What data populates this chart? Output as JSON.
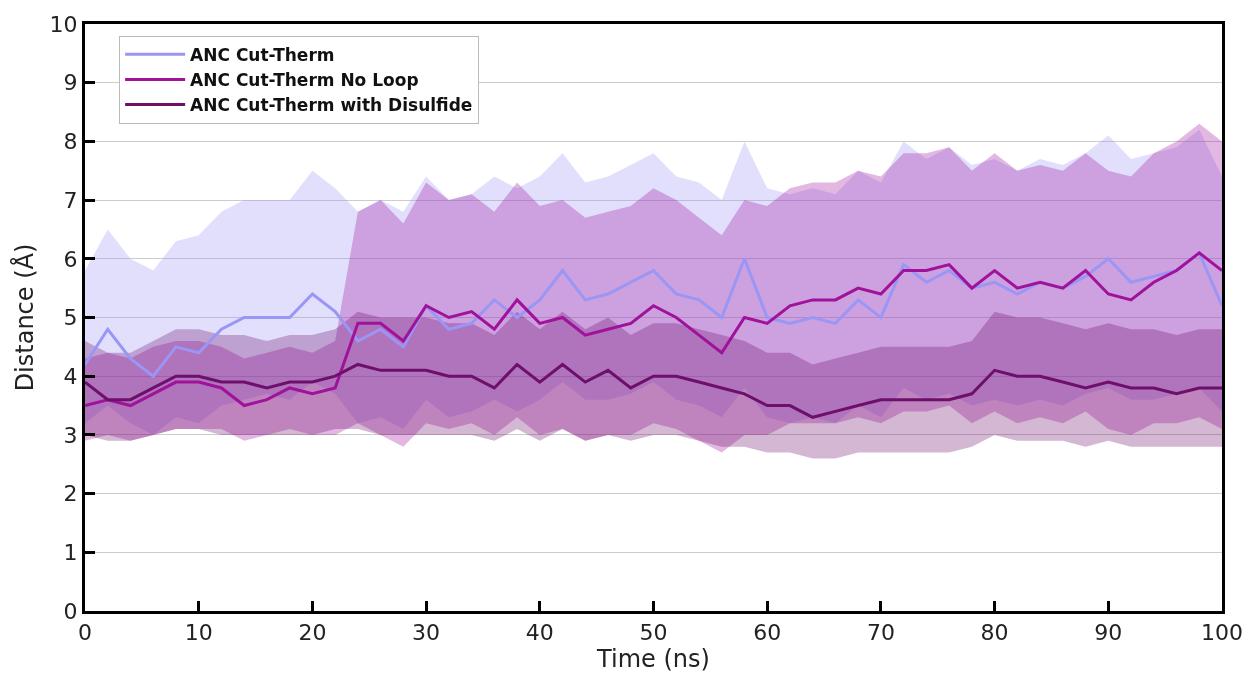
{
  "chart_data": {
    "type": "line",
    "xlabel": "Time (ns)",
    "ylabel": "Distance (Å)",
    "x": [
      0,
      2,
      4,
      6,
      8,
      10,
      12,
      14,
      16,
      18,
      20,
      22,
      24,
      26,
      28,
      30,
      32,
      34,
      36,
      38,
      40,
      42,
      44,
      46,
      48,
      50,
      52,
      54,
      56,
      58,
      60,
      62,
      64,
      66,
      68,
      70,
      72,
      74,
      76,
      78,
      80,
      82,
      84,
      86,
      88,
      90,
      92,
      94,
      96,
      98,
      100
    ],
    "xlim": [
      0,
      100
    ],
    "xticks": [
      0,
      10,
      20,
      30,
      40,
      50,
      60,
      70,
      80,
      90,
      100
    ],
    "ylim": [
      0,
      10
    ],
    "yticks": [
      0,
      1,
      2,
      3,
      4,
      5,
      6,
      7,
      8,
      9,
      10
    ],
    "grid": "y",
    "legend": "top left",
    "series": [
      {
        "name": "ANC Cut-Therm",
        "color": "#9a96f5",
        "values": [
          4.2,
          4.8,
          4.3,
          4.0,
          4.5,
          4.4,
          4.8,
          5.0,
          5.0,
          5.0,
          5.4,
          5.1,
          4.6,
          4.8,
          4.5,
          5.2,
          4.8,
          4.9,
          5.3,
          5.0,
          5.3,
          5.8,
          5.3,
          5.4,
          5.6,
          5.8,
          5.4,
          5.3,
          5.0,
          6.0,
          5.0,
          4.9,
          5.0,
          4.9,
          5.3,
          5.0,
          5.9,
          5.6,
          5.8,
          5.5,
          5.6,
          5.4,
          5.6,
          5.5,
          5.7,
          6.0,
          5.6,
          5.7,
          5.8,
          6.1,
          5.2
        ],
        "lower": [
          3.2,
          3.5,
          3.2,
          3.0,
          3.3,
          3.2,
          3.5,
          3.6,
          3.7,
          3.6,
          3.9,
          3.7,
          3.2,
          3.3,
          3.1,
          3.6,
          3.3,
          3.4,
          3.6,
          3.4,
          3.6,
          3.9,
          3.6,
          3.6,
          3.7,
          3.9,
          3.6,
          3.5,
          3.3,
          3.8,
          3.3,
          3.2,
          3.3,
          3.2,
          3.5,
          3.3,
          3.8,
          3.6,
          3.7,
          3.5,
          3.6,
          3.5,
          3.6,
          3.5,
          3.7,
          3.8,
          3.6,
          3.6,
          3.7,
          3.8,
          3.4
        ],
        "upper": [
          5.8,
          6.5,
          6.0,
          5.8,
          6.3,
          6.4,
          6.8,
          7.0,
          7.0,
          7.0,
          7.5,
          7.2,
          6.8,
          7.0,
          6.8,
          7.4,
          7.0,
          7.1,
          7.4,
          7.2,
          7.4,
          7.8,
          7.3,
          7.4,
          7.6,
          7.8,
          7.4,
          7.3,
          7.0,
          8.0,
          7.2,
          7.1,
          7.2,
          7.1,
          7.5,
          7.3,
          8.0,
          7.7,
          7.9,
          7.6,
          7.7,
          7.5,
          7.7,
          7.6,
          7.8,
          8.1,
          7.7,
          7.8,
          7.9,
          8.2,
          7.4
        ]
      },
      {
        "name": "ANC Cut-Therm No Loop",
        "color": "#a0129a",
        "values": [
          3.5,
          3.6,
          3.5,
          3.7,
          3.9,
          3.9,
          3.8,
          3.5,
          3.6,
          3.8,
          3.7,
          3.8,
          4.9,
          4.9,
          4.6,
          5.2,
          5.0,
          5.1,
          4.8,
          5.3,
          4.9,
          5.0,
          4.7,
          4.8,
          4.9,
          5.2,
          5.0,
          4.7,
          4.4,
          5.0,
          4.9,
          5.2,
          5.3,
          5.3,
          5.5,
          5.4,
          5.8,
          5.8,
          5.9,
          5.5,
          5.8,
          5.5,
          5.6,
          5.5,
          5.8,
          5.4,
          5.3,
          5.6,
          5.8,
          6.1,
          5.8
        ],
        "lower": [
          2.9,
          3.0,
          2.9,
          3.0,
          3.1,
          3.1,
          3.1,
          2.9,
          3.0,
          3.1,
          3.0,
          3.0,
          3.2,
          3.0,
          2.8,
          3.2,
          3.1,
          3.2,
          3.0,
          3.3,
          3.0,
          3.1,
          2.9,
          3.0,
          3.0,
          3.2,
          3.1,
          2.9,
          2.7,
          3.0,
          3.0,
          3.2,
          3.2,
          3.2,
          3.3,
          3.2,
          3.4,
          3.4,
          3.5,
          3.2,
          3.4,
          3.2,
          3.3,
          3.2,
          3.4,
          3.1,
          3.0,
          3.2,
          3.2,
          3.3,
          3.1
        ],
        "upper": [
          4.3,
          4.4,
          4.3,
          4.5,
          4.6,
          4.6,
          4.5,
          4.3,
          4.4,
          4.5,
          4.4,
          4.6,
          6.8,
          7.0,
          6.6,
          7.3,
          7.0,
          7.1,
          6.8,
          7.3,
          6.9,
          7.0,
          6.7,
          6.8,
          6.9,
          7.2,
          7.0,
          6.7,
          6.4,
          7.0,
          6.9,
          7.2,
          7.3,
          7.3,
          7.5,
          7.4,
          7.8,
          7.8,
          7.9,
          7.5,
          7.8,
          7.5,
          7.6,
          7.5,
          7.8,
          7.5,
          7.4,
          7.8,
          8.0,
          8.3,
          8.0
        ]
      },
      {
        "name": "ANC Cut-Therm with Disulfide",
        "color": "#6e0f6c",
        "values": [
          3.9,
          3.6,
          3.6,
          3.8,
          4.0,
          4.0,
          3.9,
          3.9,
          3.8,
          3.9,
          3.9,
          4.0,
          4.2,
          4.1,
          4.1,
          4.1,
          4.0,
          4.0,
          3.8,
          4.2,
          3.9,
          4.2,
          3.9,
          4.1,
          3.8,
          4.0,
          4.0,
          3.9,
          3.8,
          3.7,
          3.5,
          3.5,
          3.3,
          3.4,
          3.5,
          3.6,
          3.6,
          3.6,
          3.6,
          3.7,
          4.1,
          4.0,
          4.0,
          3.9,
          3.8,
          3.9,
          3.8,
          3.8,
          3.7,
          3.8,
          3.8
        ],
        "lower": [
          3.0,
          2.9,
          2.9,
          3.0,
          3.1,
          3.1,
          3.0,
          3.0,
          3.0,
          3.0,
          3.0,
          3.1,
          3.1,
          3.0,
          3.0,
          3.0,
          3.0,
          3.0,
          2.9,
          3.1,
          2.9,
          3.1,
          2.9,
          3.0,
          2.9,
          3.0,
          3.0,
          2.9,
          2.8,
          2.8,
          2.7,
          2.7,
          2.6,
          2.6,
          2.7,
          2.7,
          2.7,
          2.7,
          2.7,
          2.8,
          3.0,
          2.9,
          2.9,
          2.9,
          2.8,
          2.9,
          2.8,
          2.8,
          2.8,
          2.8,
          2.8
        ],
        "upper": [
          4.6,
          4.4,
          4.4,
          4.6,
          4.8,
          4.8,
          4.7,
          4.7,
          4.6,
          4.7,
          4.7,
          4.8,
          5.1,
          5.0,
          5.0,
          5.0,
          4.9,
          4.9,
          4.7,
          5.1,
          4.8,
          5.1,
          4.8,
          5.0,
          4.7,
          4.9,
          4.9,
          4.8,
          4.7,
          4.6,
          4.4,
          4.4,
          4.2,
          4.3,
          4.4,
          4.5,
          4.5,
          4.5,
          4.5,
          4.6,
          5.1,
          5.0,
          5.0,
          4.9,
          4.8,
          4.9,
          4.8,
          4.8,
          4.7,
          4.8,
          4.8
        ]
      }
    ]
  }
}
